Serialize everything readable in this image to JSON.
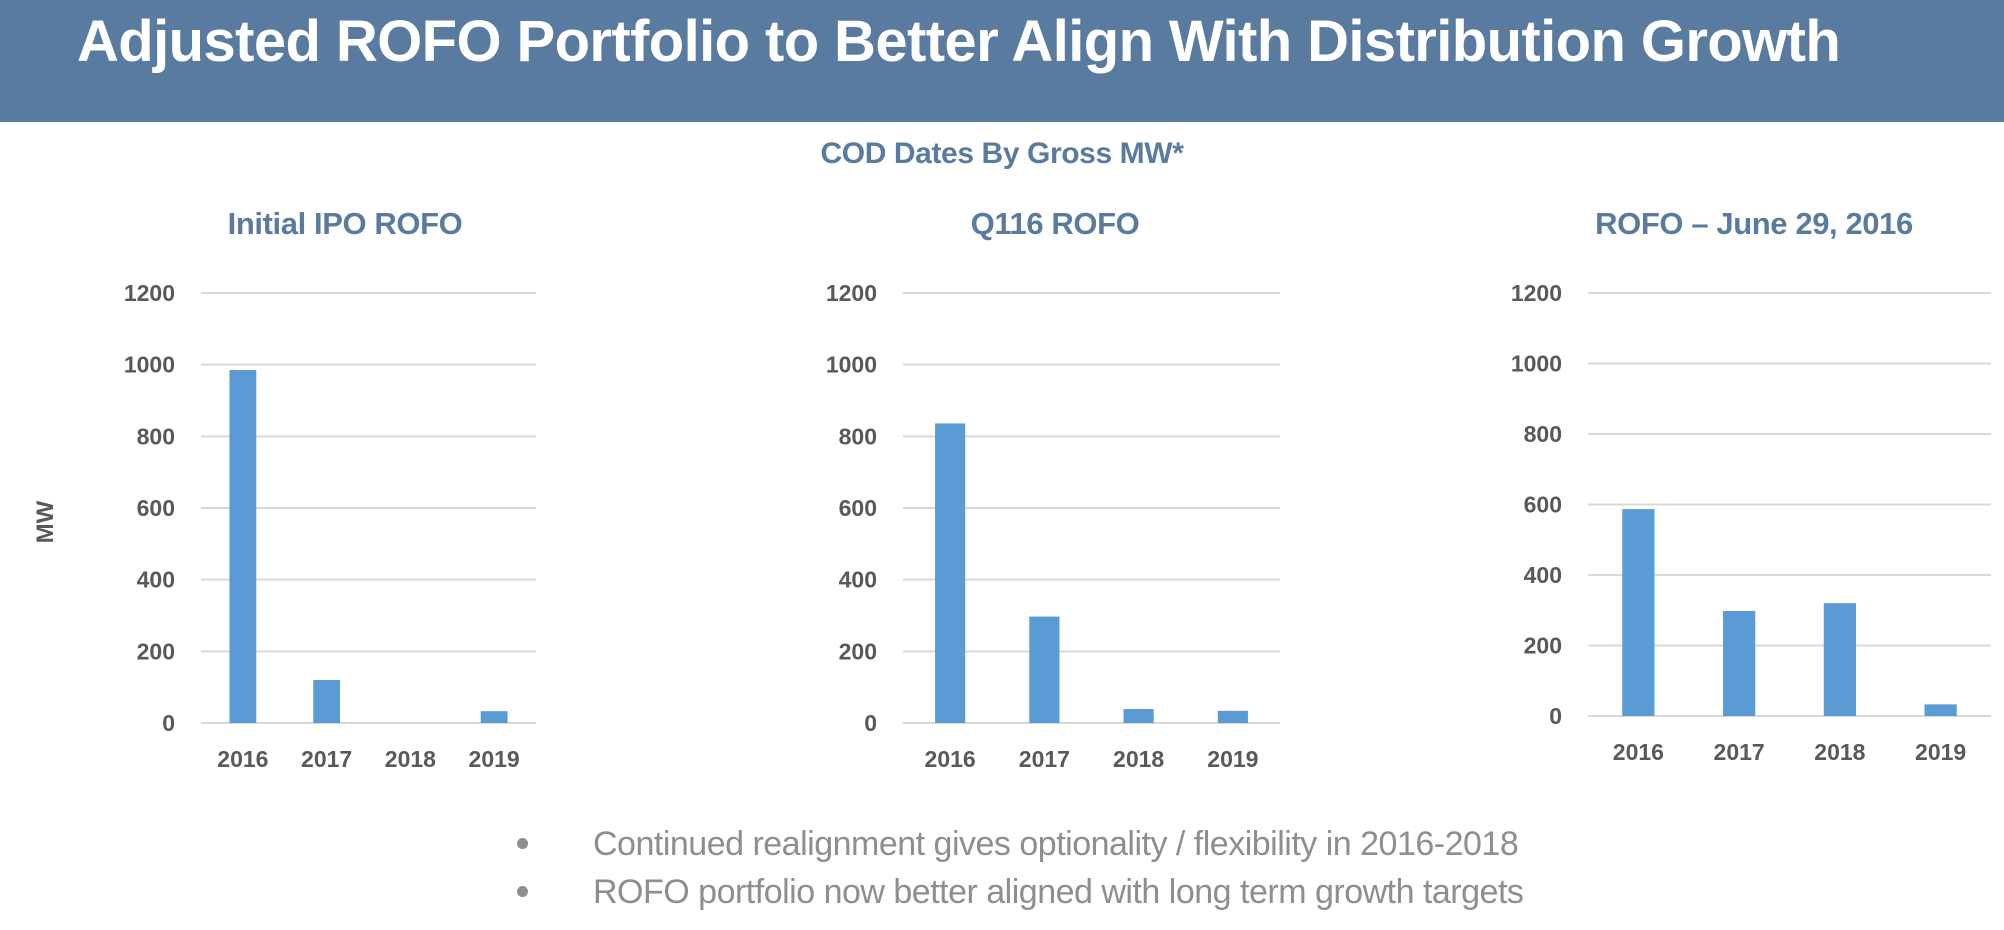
{
  "header": {
    "title": "Adjusted ROFO Portfolio to Better Align With Distribution Growth"
  },
  "subtitle": "COD Dates By Gross MW*",
  "colors": {
    "header_bg": "#5a7ba0",
    "bar": "#5b9bd5",
    "grid": "#d9d9d9",
    "tick_text": "#595959",
    "bullet_text": "#8e8e8e"
  },
  "chart_data": [
    {
      "type": "bar",
      "title": "Initial IPO ROFO",
      "xlabel": "",
      "ylabel": "MW",
      "categories": [
        "2016",
        "2017",
        "2018",
        "2019"
      ],
      "values": [
        985,
        120,
        0,
        33
      ],
      "ylim": [
        0,
        1200
      ],
      "yticks": [
        0,
        200,
        400,
        600,
        800,
        1000,
        1200
      ],
      "grid": true,
      "legend": "none"
    },
    {
      "type": "bar",
      "title": "Q116 ROFO",
      "xlabel": "",
      "ylabel": "",
      "categories": [
        "2016",
        "2017",
        "2018",
        "2019"
      ],
      "values": [
        836,
        297,
        39,
        34
      ],
      "ylim": [
        0,
        1200
      ],
      "yticks": [
        0,
        200,
        400,
        600,
        800,
        1000,
        1200
      ],
      "grid": true,
      "legend": "none"
    },
    {
      "type": "bar",
      "title": "ROFO – June 29, 2016",
      "xlabel": "",
      "ylabel": "",
      "categories": [
        "2016",
        "2017",
        "2018",
        "2019"
      ],
      "values": [
        587,
        298,
        320,
        33
      ],
      "ylim": [
        0,
        1200
      ],
      "yticks": [
        0,
        200,
        400,
        600,
        800,
        1000,
        1200
      ],
      "grid": true,
      "legend": "none"
    }
  ],
  "bullets": [
    "Continued realignment gives optionality / flexibility in 2016-2018",
    "ROFO portfolio now better aligned with long term growth targets"
  ]
}
